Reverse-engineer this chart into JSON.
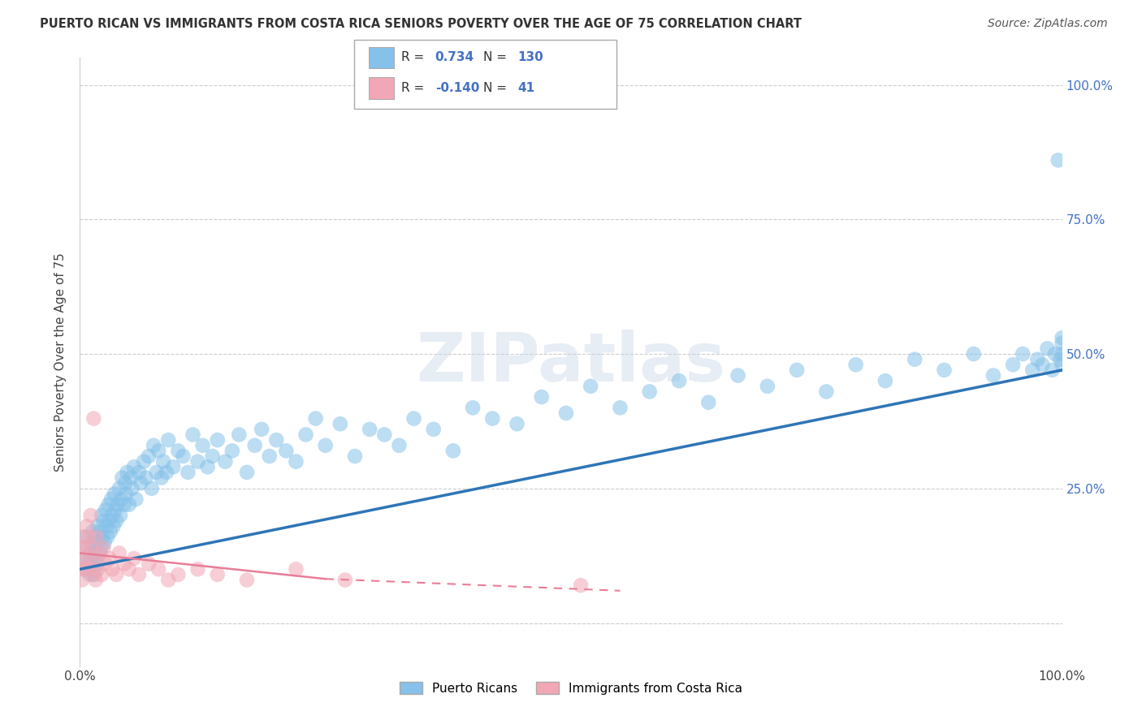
{
  "title": "PUERTO RICAN VS IMMIGRANTS FROM COSTA RICA SENIORS POVERTY OVER THE AGE OF 75 CORRELATION CHART",
  "source": "Source: ZipAtlas.com",
  "ylabel": "Seniors Poverty Over the Age of 75",
  "xmin": 0.0,
  "xmax": 1.0,
  "ymin": -0.08,
  "ymax": 1.05,
  "ytick_vals": [
    0.0,
    0.25,
    0.5,
    0.75,
    1.0
  ],
  "ytick_labels": [
    "",
    "25.0%",
    "50.0%",
    "75.0%",
    "100.0%"
  ],
  "background_color": "#ffffff",
  "grid_color": "#cccccc",
  "watermark": "ZIPatlas",
  "blue_color": "#85C1E9",
  "pink_color": "#F1A7B5",
  "blue_line_color": "#2E75B6",
  "pink_line_color": "#E87D96",
  "R_blue": 0.734,
  "N_blue": 130,
  "R_pink": -0.14,
  "N_pink": 41,
  "legend_label_blue": "Puerto Ricans",
  "legend_label_pink": "Immigrants from Costa Rica",
  "blue_scatter_x": [
    0.005,
    0.005,
    0.007,
    0.008,
    0.009,
    0.01,
    0.01,
    0.011,
    0.012,
    0.013,
    0.013,
    0.014,
    0.015,
    0.015,
    0.016,
    0.017,
    0.018,
    0.018,
    0.019,
    0.02,
    0.021,
    0.022,
    0.022,
    0.023,
    0.024,
    0.025,
    0.026,
    0.027,
    0.028,
    0.029,
    0.03,
    0.031,
    0.032,
    0.033,
    0.034,
    0.035,
    0.036,
    0.037,
    0.038,
    0.04,
    0.041,
    0.042,
    0.043,
    0.045,
    0.046,
    0.047,
    0.048,
    0.05,
    0.052,
    0.053,
    0.055,
    0.057,
    0.06,
    0.062,
    0.065,
    0.067,
    0.07,
    0.073,
    0.075,
    0.078,
    0.08,
    0.083,
    0.085,
    0.088,
    0.09,
    0.095,
    0.1,
    0.105,
    0.11,
    0.115,
    0.12,
    0.125,
    0.13,
    0.135,
    0.14,
    0.148,
    0.155,
    0.162,
    0.17,
    0.178,
    0.185,
    0.193,
    0.2,
    0.21,
    0.22,
    0.23,
    0.24,
    0.25,
    0.265,
    0.28,
    0.295,
    0.31,
    0.325,
    0.34,
    0.36,
    0.38,
    0.4,
    0.42,
    0.445,
    0.47,
    0.495,
    0.52,
    0.55,
    0.58,
    0.61,
    0.64,
    0.67,
    0.7,
    0.73,
    0.76,
    0.79,
    0.82,
    0.85,
    0.88,
    0.91,
    0.93,
    0.95,
    0.96,
    0.97,
    0.975,
    0.98,
    0.985,
    0.99,
    0.993,
    0.996,
    0.998,
    1.0,
    1.0,
    1.0,
    1.0
  ],
  "blue_scatter_y": [
    0.1,
    0.16,
    0.12,
    0.14,
    0.11,
    0.09,
    0.13,
    0.11,
    0.15,
    0.1,
    0.17,
    0.13,
    0.09,
    0.16,
    0.14,
    0.12,
    0.18,
    0.11,
    0.15,
    0.13,
    0.17,
    0.14,
    0.2,
    0.16,
    0.19,
    0.15,
    0.21,
    0.18,
    0.16,
    0.22,
    0.19,
    0.17,
    0.23,
    0.2,
    0.18,
    0.24,
    0.21,
    0.19,
    0.22,
    0.25,
    0.2,
    0.23,
    0.27,
    0.22,
    0.26,
    0.24,
    0.28,
    0.22,
    0.27,
    0.25,
    0.29,
    0.23,
    0.28,
    0.26,
    0.3,
    0.27,
    0.31,
    0.25,
    0.33,
    0.28,
    0.32,
    0.27,
    0.3,
    0.28,
    0.34,
    0.29,
    0.32,
    0.31,
    0.28,
    0.35,
    0.3,
    0.33,
    0.29,
    0.31,
    0.34,
    0.3,
    0.32,
    0.35,
    0.28,
    0.33,
    0.36,
    0.31,
    0.34,
    0.32,
    0.3,
    0.35,
    0.38,
    0.33,
    0.37,
    0.31,
    0.36,
    0.35,
    0.33,
    0.38,
    0.36,
    0.32,
    0.4,
    0.38,
    0.37,
    0.42,
    0.39,
    0.44,
    0.4,
    0.43,
    0.45,
    0.41,
    0.46,
    0.44,
    0.47,
    0.43,
    0.48,
    0.45,
    0.49,
    0.47,
    0.5,
    0.46,
    0.48,
    0.5,
    0.47,
    0.49,
    0.48,
    0.51,
    0.47,
    0.5,
    0.86,
    0.49,
    0.5,
    0.52,
    0.48,
    0.53
  ],
  "pink_scatter_x": [
    0.0,
    0.001,
    0.002,
    0.003,
    0.004,
    0.005,
    0.006,
    0.007,
    0.008,
    0.009,
    0.01,
    0.011,
    0.012,
    0.013,
    0.014,
    0.015,
    0.016,
    0.017,
    0.018,
    0.02,
    0.022,
    0.024,
    0.026,
    0.03,
    0.033,
    0.037,
    0.04,
    0.045,
    0.05,
    0.055,
    0.06,
    0.07,
    0.08,
    0.09,
    0.1,
    0.12,
    0.14,
    0.17,
    0.22,
    0.27,
    0.51
  ],
  "pink_scatter_y": [
    0.1,
    0.14,
    0.08,
    0.12,
    0.16,
    0.1,
    0.14,
    0.18,
    0.12,
    0.16,
    0.1,
    0.2,
    0.14,
    0.09,
    0.38,
    0.12,
    0.08,
    0.16,
    0.1,
    0.13,
    0.09,
    0.14,
    0.11,
    0.12,
    0.1,
    0.09,
    0.13,
    0.11,
    0.1,
    0.12,
    0.09,
    0.11,
    0.1,
    0.08,
    0.09,
    0.1,
    0.09,
    0.08,
    0.1,
    0.08,
    0.07
  ]
}
